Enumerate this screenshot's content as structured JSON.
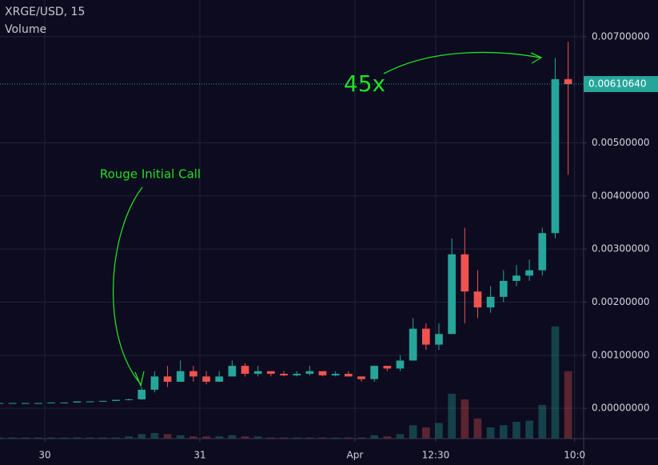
{
  "chart_data": {
    "type": "candlestick",
    "title": "XRGE/USD, 15",
    "volume_label": "Volume",
    "x": [
      -7,
      -5,
      -3,
      -1,
      1,
      3,
      5,
      7,
      9,
      11,
      13,
      15,
      17,
      19,
      21,
      23,
      25,
      27,
      29,
      31,
      33,
      35,
      37,
      39,
      41,
      43,
      45,
      47,
      49,
      51,
      53,
      55,
      57,
      59,
      61,
      63,
      65,
      67,
      69,
      71,
      73,
      75,
      77,
      79,
      81
    ],
    "open": [
      0.0001,
      0.0001,
      0.0001,
      0.0001,
      0.0001,
      0.00011,
      0.00011,
      0.00013,
      0.00013,
      0.00014,
      0.00016,
      0.00017,
      0.00035,
      0.0006,
      0.0005,
      0.0007,
      0.0006,
      0.0005,
      0.0006,
      0.0008,
      0.00065,
      0.0007,
      0.00065,
      0.00062,
      0.00065,
      0.0007,
      0.00062,
      0.00065,
      0.0006,
      0.00055,
      0.0008,
      0.00075,
      0.0009,
      0.0015,
      0.0012,
      0.0014,
      0.0029,
      0.0022,
      0.0019,
      0.0021,
      0.0024,
      0.0025,
      0.0026,
      0.0033,
      0.0062
    ],
    "high": [
      0.0001,
      0.0001,
      0.0001,
      0.0001,
      0.00011,
      0.00011,
      0.00013,
      0.00013,
      0.00014,
      0.00016,
      0.00018,
      0.0004,
      0.0007,
      0.0008,
      0.0009,
      0.0008,
      0.0007,
      0.0007,
      0.0009,
      0.00085,
      0.0008,
      0.0007,
      0.0007,
      0.0007,
      0.0008,
      0.0007,
      0.0007,
      0.0007,
      0.0006,
      0.0008,
      0.0008,
      0.001,
      0.0017,
      0.0016,
      0.0016,
      0.0032,
      0.0034,
      0.0026,
      0.0023,
      0.0026,
      0.0027,
      0.0028,
      0.0034,
      0.0066,
      0.0069
    ],
    "low": [
      0.0001,
      0.0001,
      0.0001,
      0.0001,
      0.0001,
      0.00011,
      0.00011,
      0.00012,
      0.00013,
      0.00014,
      0.00015,
      0.00016,
      0.0003,
      0.0004,
      0.0005,
      0.0005,
      0.00045,
      0.0005,
      0.0006,
      0.0006,
      0.0006,
      0.0006,
      0.0006,
      0.0006,
      0.00062,
      0.0006,
      0.0006,
      0.0006,
      0.0005,
      0.0005,
      0.0007,
      0.0007,
      0.0009,
      0.0011,
      0.0011,
      0.0014,
      0.0016,
      0.0017,
      0.0018,
      0.002,
      0.0023,
      0.0024,
      0.0025,
      0.0032,
      0.0044
    ],
    "close": [
      0.0001,
      0.0001,
      0.0001,
      0.0001,
      0.00011,
      0.00011,
      0.00013,
      0.00013,
      0.00014,
      0.00016,
      0.00017,
      0.00035,
      0.0006,
      0.0005,
      0.0007,
      0.0006,
      0.0005,
      0.0006,
      0.0008,
      0.00065,
      0.0007,
      0.00065,
      0.00062,
      0.00065,
      0.0007,
      0.00062,
      0.00065,
      0.0006,
      0.00055,
      0.0008,
      0.00075,
      0.0009,
      0.0015,
      0.0012,
      0.0014,
      0.0029,
      0.0022,
      0.0019,
      0.0021,
      0.0024,
      0.0025,
      0.0026,
      0.0033,
      0.0062,
      0.0061064
    ],
    "volume": [
      1,
      1,
      1,
      1,
      1,
      1,
      1,
      1,
      1,
      1,
      2,
      4,
      5,
      4,
      3,
      2,
      2,
      2,
      3,
      2,
      2,
      1,
      1,
      1,
      1,
      1,
      1,
      1,
      1,
      3,
      2,
      4,
      12,
      10,
      14,
      40,
      35,
      18,
      10,
      12,
      15,
      16,
      30,
      100,
      60
    ],
    "volume_ylim": [
      0,
      107
    ],
    "up_color": "#26a69a",
    "down_color": "#ef5350",
    "xlim": [
      -6.93,
      83.4
    ],
    "ylim": [
      -0.00057,
      0.00769
    ],
    "xticks": [
      {
        "value": 0,
        "label": "30"
      },
      {
        "value": 24,
        "label": "31"
      },
      {
        "value": 48,
        "label": "Apr"
      },
      {
        "value": 60.5,
        "label": "12:30"
      },
      {
        "value": 82,
        "label": "10:0"
      }
    ],
    "yticks": [
      {
        "value": 0,
        "label": "0.00000000"
      },
      {
        "value": 0.001,
        "label": "0.00100000"
      },
      {
        "value": 0.002,
        "label": "0.00200000"
      },
      {
        "value": 0.003,
        "label": "0.00300000"
      },
      {
        "value": 0.004,
        "label": "0.00400000"
      },
      {
        "value": 0.005,
        "label": "0.00500000"
      },
      {
        "value": 0.007,
        "label": "0.00700000"
      }
    ],
    "last_price": {
      "value": 0.0061064,
      "label": "0.00610640"
    },
    "grid": true,
    "annotations": [
      {
        "text": "Rouge Initial Call",
        "color": "#22e022"
      },
      {
        "text": "45x",
        "color": "#22e022"
      }
    ]
  }
}
